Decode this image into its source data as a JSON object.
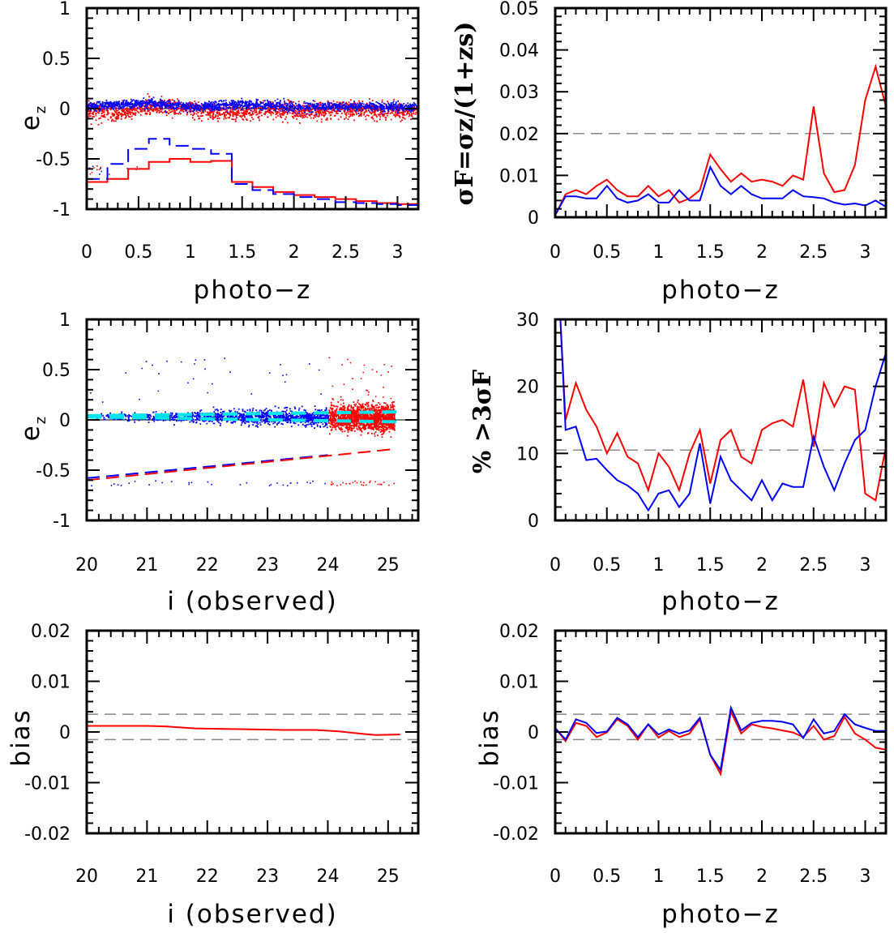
{
  "colors": {
    "red": "#ff0000",
    "blue": "#0000ff",
    "cyan": "#00e5ee",
    "gray": "#888888",
    "black": "#000000"
  },
  "chart_data": [
    {
      "id": "p1",
      "type": "scatter",
      "xlabel": "photo−z",
      "ylabel": "e",
      "ylabel_sub": "z",
      "xlim": [
        0,
        3.2
      ],
      "ylim": [
        -1,
        1
      ],
      "xticks": [
        "0",
        "0.5",
        "1",
        "1.5",
        "2",
        "2.5",
        "3"
      ],
      "xtick_values": [
        0,
        0.5,
        1,
        1.5,
        2,
        2.5,
        3
      ],
      "yticks": [
        "-1",
        "-0.5",
        "0",
        "0.5",
        "1"
      ],
      "ytick_values": [
        -1,
        -0.5,
        0,
        0.5,
        1
      ],
      "scatter_bands": [
        {
          "name": "",
          "color": "red",
          "center": [
            [
              0,
              0.0
            ],
            [
              0.3,
              -0.05
            ],
            [
              0.6,
              0.03
            ],
            [
              1.0,
              0.0
            ],
            [
              1.3,
              -0.05
            ],
            [
              1.7,
              0.0
            ],
            [
              2.0,
              -0.02
            ],
            [
              2.5,
              0.0
            ],
            [
              3.0,
              -0.02
            ],
            [
              3.2,
              0.0
            ]
          ],
          "spread": 0.09
        },
        {
          "name": "",
          "color": "blue",
          "center": [
            [
              0,
              0.03
            ],
            [
              0.6,
              0.06
            ],
            [
              1.0,
              0.02
            ],
            [
              1.5,
              0.05
            ],
            [
              2.0,
              0.02
            ],
            [
              2.5,
              0.03
            ],
            [
              3.2,
              0.02
            ]
          ],
          "spread": 0.05
        }
      ],
      "series": [
        {
          "name": "",
          "color": "red",
          "style": "step",
          "x": [
            0,
            0.2,
            0.4,
            0.6,
            0.8,
            1.0,
            1.2,
            1.4,
            1.6,
            1.8,
            2.0,
            2.2,
            2.4,
            2.6,
            2.8,
            3.0,
            3.2
          ],
          "y": [
            -0.73,
            -0.7,
            -0.6,
            -0.53,
            -0.5,
            -0.53,
            -0.52,
            -0.73,
            -0.78,
            -0.83,
            -0.86,
            -0.88,
            -0.9,
            -0.92,
            -0.94,
            -0.95,
            -0.95
          ]
        },
        {
          "name": "",
          "color": "blue",
          "style": "step-dashed",
          "x": [
            0,
            0.2,
            0.4,
            0.6,
            0.8,
            1.0,
            1.2,
            1.4,
            1.6,
            1.8,
            2.0,
            2.2,
            2.4,
            2.6,
            2.8,
            3.0,
            3.2
          ],
          "y": [
            -0.7,
            -0.55,
            -0.4,
            -0.3,
            -0.37,
            -0.4,
            -0.45,
            -0.75,
            -0.81,
            -0.85,
            -0.88,
            -0.9,
            -0.93,
            -0.94,
            -0.95,
            -0.96,
            -0.96
          ]
        }
      ]
    },
    {
      "id": "p2",
      "type": "line",
      "xlabel": "photo−z",
      "ylabel": "σF=σz/(1+zs)",
      "xlim": [
        0,
        3.2
      ],
      "ylim": [
        0,
        0.05
      ],
      "xticks": [
        "0",
        "0.5",
        "1",
        "1.5",
        "2",
        "2.5",
        "3"
      ],
      "xtick_values": [
        0,
        0.5,
        1,
        1.5,
        2,
        2.5,
        3
      ],
      "yticks": [
        "0",
        "0.01",
        "0.02",
        "0.03",
        "0.04",
        "0.05"
      ],
      "ytick_values": [
        0,
        0.01,
        0.02,
        0.03,
        0.04,
        0.05
      ],
      "hlines": [
        0.02
      ],
      "x": [
        0,
        0.1,
        0.2,
        0.3,
        0.4,
        0.5,
        0.6,
        0.7,
        0.8,
        0.9,
        1.0,
        1.1,
        1.2,
        1.3,
        1.4,
        1.5,
        1.6,
        1.7,
        1.8,
        1.9,
        2.0,
        2.1,
        2.2,
        2.3,
        2.4,
        2.5,
        2.6,
        2.7,
        2.8,
        2.9,
        3.0,
        3.1,
        3.2
      ],
      "series": [
        {
          "name": "",
          "color": "red",
          "values": [
            0.0005,
            0.0055,
            0.0065,
            0.0055,
            0.0075,
            0.009,
            0.0065,
            0.005,
            0.005,
            0.0075,
            0.005,
            0.0065,
            0.0035,
            0.0045,
            0.0065,
            0.015,
            0.0115,
            0.0085,
            0.0105,
            0.0085,
            0.009,
            0.0085,
            0.0075,
            0.01,
            0.009,
            0.0265,
            0.0105,
            0.006,
            0.0065,
            0.0125,
            0.028,
            0.036,
            0.0265
          ]
        },
        {
          "name": "",
          "color": "blue",
          "values": [
            0.0005,
            0.005,
            0.005,
            0.0045,
            0.0045,
            0.0075,
            0.0045,
            0.0035,
            0.004,
            0.0055,
            0.0035,
            0.0035,
            0.0065,
            0.004,
            0.004,
            0.012,
            0.0075,
            0.0055,
            0.0075,
            0.0055,
            0.0045,
            0.0045,
            0.0045,
            0.0065,
            0.005,
            0.0048,
            0.0045,
            0.0035,
            0.003,
            0.0033,
            0.0028,
            0.004,
            0.0025
          ]
        }
      ]
    },
    {
      "id": "p3",
      "type": "scatter",
      "xlabel": "i (observed)",
      "ylabel": "e",
      "ylabel_sub": "z",
      "xlim": [
        20,
        25.5
      ],
      "ylim": [
        -1,
        1
      ],
      "xticks": [
        "20",
        "21",
        "22",
        "23",
        "24",
        "25"
      ],
      "xtick_values": [
        20,
        21,
        22,
        23,
        24,
        25
      ],
      "yticks": [
        "-1",
        "-0.5",
        "0",
        "0.5",
        "1"
      ],
      "ytick_values": [
        -1,
        -0.5,
        0,
        0.5,
        1
      ],
      "scatter_bands": [
        {
          "name": "",
          "color": "blue",
          "center": [
            [
              20,
              0.04
            ],
            [
              24,
              0.03
            ]
          ],
          "spread": 0.07
        },
        {
          "name": "",
          "color": "red",
          "center": [
            [
              24,
              0.03
            ],
            [
              25.1,
              0.02
            ]
          ],
          "spread": 0.14
        }
      ],
      "series": [
        {
          "name": "",
          "color": "cyan",
          "style": "dashed",
          "x": [
            20,
            25.2
          ],
          "y": [
            0.04,
            0.08
          ]
        },
        {
          "name": "",
          "color": "cyan",
          "style": "dashed",
          "x": [
            20,
            25.2
          ],
          "y": [
            0.03,
            -0.02
          ]
        },
        {
          "name": "",
          "color": "blue",
          "style": "dashed",
          "x": [
            20,
            24
          ],
          "y": [
            -0.58,
            -0.35
          ]
        },
        {
          "name": "",
          "color": "red",
          "style": "dashed",
          "x": [
            20,
            25.1
          ],
          "y": [
            -0.6,
            -0.29
          ]
        }
      ]
    },
    {
      "id": "p4",
      "type": "line",
      "xlabel": "photo−z",
      "ylabel": "%  >3σF",
      "xlim": [
        0,
        3.2
      ],
      "ylim": [
        0,
        30
      ],
      "xticks": [
        "0",
        "0.5",
        "1",
        "1.5",
        "2",
        "2.5",
        "3"
      ],
      "xtick_values": [
        0,
        0.5,
        1,
        1.5,
        2,
        2.5,
        3
      ],
      "yticks": [
        "0",
        "10",
        "20",
        "30"
      ],
      "ytick_values": [
        0,
        10,
        20,
        30
      ],
      "hlines": [
        10.5
      ],
      "x": [
        0.05,
        0.1,
        0.2,
        0.3,
        0.4,
        0.5,
        0.6,
        0.7,
        0.8,
        0.9,
        1.0,
        1.1,
        1.2,
        1.3,
        1.4,
        1.5,
        1.6,
        1.7,
        1.8,
        1.9,
        2.0,
        2.1,
        2.2,
        2.3,
        2.4,
        2.5,
        2.6,
        2.7,
        2.8,
        2.9,
        3.0,
        3.1,
        3.2
      ],
      "series": [
        {
          "name": "",
          "color": "red",
          "values": [
            30,
            15,
            20.5,
            16.5,
            14,
            10,
            13,
            9.5,
            8.5,
            4.5,
            10,
            8,
            4.5,
            10,
            13.5,
            5.5,
            12,
            13.5,
            9.5,
            8.5,
            13.5,
            14.5,
            15,
            14,
            21,
            11,
            20.5,
            17,
            20,
            19.5,
            4,
            3,
            11
          ]
        },
        {
          "name": "",
          "color": "blue",
          "values": [
            30,
            13.5,
            14,
            9,
            9.2,
            7.5,
            6,
            5.2,
            4,
            1.5,
            4,
            4.5,
            2,
            4,
            11.5,
            2.5,
            9.5,
            6,
            4.5,
            3,
            6,
            3,
            5.5,
            5,
            5,
            12.5,
            8,
            4.5,
            8.5,
            12,
            13.5,
            20,
            25
          ]
        }
      ]
    },
    {
      "id": "p5",
      "type": "line",
      "xlabel": "i (observed)",
      "ylabel": "bias",
      "xlim": [
        20,
        25.5
      ],
      "ylim": [
        -0.02,
        0.02
      ],
      "xticks": [
        "20",
        "21",
        "22",
        "23",
        "24",
        "25"
      ],
      "xtick_values": [
        20,
        21,
        22,
        23,
        24,
        25
      ],
      "yticks": [
        "-0.02",
        "-0.01",
        "0",
        "0.01",
        "0.02"
      ],
      "ytick_values": [
        -0.02,
        -0.01,
        0,
        0.01,
        0.02
      ],
      "hlines": [
        0.0035,
        -0.0015
      ],
      "x": [
        20,
        20.5,
        21,
        21.3,
        21.8,
        22.3,
        22.8,
        23.3,
        23.8,
        24.2,
        24.6,
        24.8,
        25.2
      ],
      "series": [
        {
          "name": "",
          "color": "red",
          "values": [
            0.0012,
            0.0012,
            0.0012,
            0.0011,
            0.0007,
            0.0006,
            0.0005,
            0.0004,
            0.0004,
            0.0001,
            -0.0004,
            -0.0006,
            -0.0005
          ]
        }
      ]
    },
    {
      "id": "p6",
      "type": "line",
      "xlabel": "photo−z",
      "ylabel": "bias",
      "xlim": [
        0,
        3.2
      ],
      "ylim": [
        -0.02,
        0.02
      ],
      "xticks": [
        "0",
        "0.5",
        "1",
        "1.5",
        "2",
        "2.5",
        "3"
      ],
      "xtick_values": [
        0,
        0.5,
        1,
        1.5,
        2,
        2.5,
        3
      ],
      "yticks": [
        "-0.02",
        "-0.01",
        "0",
        "0.01",
        "0.02"
      ],
      "ytick_values": [
        -0.02,
        -0.01,
        0,
        0.01,
        0.02
      ],
      "hlines": [
        0.0035,
        -0.0015
      ],
      "x": [
        0,
        0.1,
        0.2,
        0.3,
        0.4,
        0.5,
        0.6,
        0.7,
        0.8,
        0.9,
        1.0,
        1.1,
        1.2,
        1.3,
        1.4,
        1.5,
        1.6,
        1.7,
        1.8,
        1.9,
        2.0,
        2.1,
        2.2,
        2.3,
        2.4,
        2.5,
        2.6,
        2.7,
        2.8,
        2.9,
        3.0,
        3.1,
        3.2
      ],
      "series": [
        {
          "name": "",
          "color": "red",
          "values": [
            0.0008,
            -0.0018,
            0.0018,
            0.0012,
            -0.001,
            -0.0001,
            0.0025,
            0.0012,
            -0.0015,
            0.0015,
            -0.0011,
            0.0002,
            -0.001,
            -0.0003,
            0.0025,
            -0.0045,
            -0.0083,
            0.004,
            -0.0003,
            0.0015,
            0.001,
            0.0007,
            0.0003,
            -0.0001,
            -0.001,
            0.0012,
            -0.0015,
            -0.0008,
            0.003,
            -0.0003,
            -0.0015,
            -0.0031,
            -0.0035
          ]
        },
        {
          "name": "",
          "color": "blue",
          "values": [
            0.0008,
            -0.0015,
            0.0025,
            0.0018,
            -0.0002,
            0.0001,
            0.0028,
            0.0015,
            -0.001,
            0.0015,
            -0.0005,
            0.0005,
            -0.0003,
            0.0003,
            0.0028,
            -0.0045,
            -0.0075,
            0.0048,
            0.0003,
            0.0018,
            0.0022,
            0.0022,
            0.002,
            0.0015,
            -0.0012,
            0.0025,
            -0.0003,
            0.0002,
            0.0035,
            0.0015,
            0.0008,
            0.0002,
            0.0002
          ]
        }
      ]
    }
  ]
}
